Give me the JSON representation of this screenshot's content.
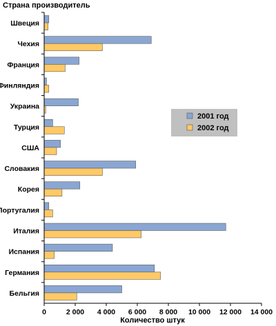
{
  "chart_data": {
    "type": "bar",
    "orientation": "horizontal",
    "ylabel": "Страна производитель",
    "xlabel": "Количество штук",
    "categories": [
      "Швеция",
      "Чехия",
      "Франция",
      "Финляндия",
      "Украина",
      "Турция",
      "США",
      "Словакия",
      "Корея",
      "Португалия",
      "Италия",
      "Испания",
      "Германия",
      "Бельгия"
    ],
    "series": [
      {
        "name": "2001 год",
        "color": "#8aa6d2",
        "values": [
          300,
          6900,
          2250,
          150,
          2200,
          550,
          1050,
          5900,
          2300,
          300,
          11700,
          4400,
          7100,
          5000
        ]
      },
      {
        "name": "2002 год",
        "color": "#ffc966",
        "values": [
          250,
          3750,
          1350,
          300,
          100,
          1300,
          800,
          3750,
          1150,
          550,
          6250,
          650,
          7500,
          2100
        ]
      }
    ],
    "xlim": [
      0,
      14000
    ],
    "xticks": [
      0,
      2000,
      4000,
      6000,
      8000,
      10000,
      12000,
      14000
    ],
    "xtick_labels": [
      "0",
      "2 000",
      "4 000",
      "6 000",
      "8 000",
      "10 000",
      "12 000",
      "14 000"
    ],
    "grid": false,
    "legend_position": "right",
    "legend_background": "#c0c0c0"
  }
}
